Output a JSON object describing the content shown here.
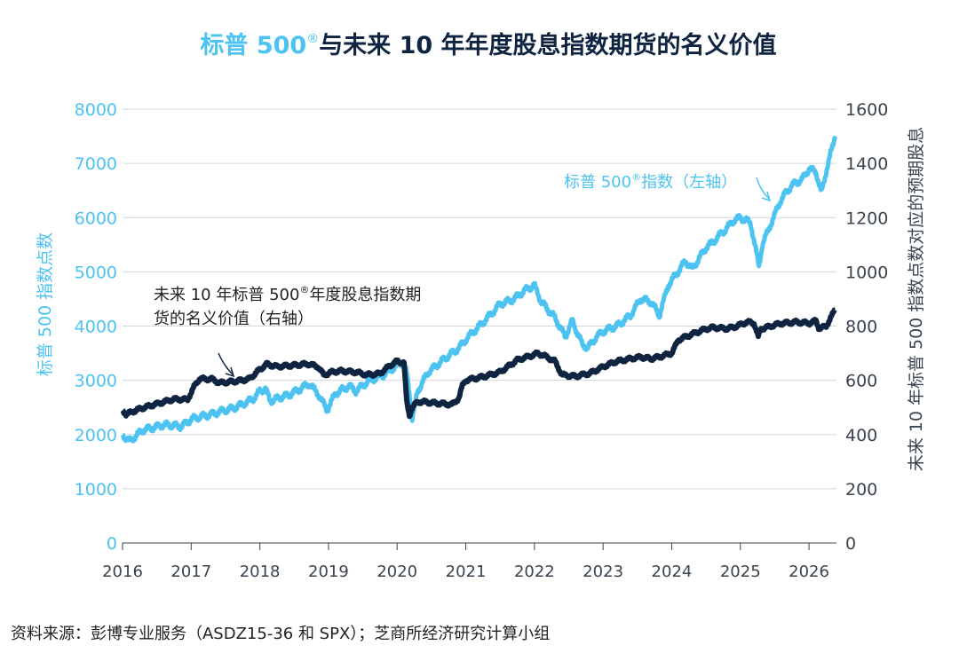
{
  "chart_data": {
    "type": "line",
    "title_part1": "标普 500",
    "title_sup": "®",
    "title_part2": "与未来 10 年年度股息指数期货的名义价值",
    "y_left_label": "标普 500 指数点数",
    "y_right_label": "未来 10 年标普 500 指数点数对应的预期股息",
    "y_left_range": [
      0,
      8000
    ],
    "y_right_range": [
      0,
      1600
    ],
    "y_left_ticks": [
      "0",
      "1000",
      "2000",
      "3000",
      "4000",
      "5000",
      "6000",
      "7000",
      "8000"
    ],
    "y_right_ticks": [
      "0",
      "200",
      "400",
      "600",
      "800",
      "1000",
      "1200",
      "1400",
      "1600"
    ],
    "x_range": [
      2016.0,
      2026.4
    ],
    "x_ticks": [
      "2016",
      "2017",
      "2018",
      "2019",
      "2020",
      "2021",
      "2022",
      "2023",
      "2024",
      "2025",
      "2026"
    ],
    "grid": true,
    "colors": {
      "spx": "#4cc3f0",
      "dividend": "#0f2440",
      "grid": "#d4d7db"
    },
    "series": [
      {
        "name": "标普 500®指数（左轴）",
        "axis": "left",
        "x": [
          2016.0,
          2016.1,
          2016.3,
          2016.6,
          2016.85,
          2017.0,
          2017.3,
          2017.6,
          2017.9,
          2018.0,
          2018.08,
          2018.15,
          2018.4,
          2018.6,
          2018.72,
          2018.85,
          2018.98,
          2019.1,
          2019.3,
          2019.4,
          2019.6,
          2019.8,
          2019.95,
          2020.1,
          2020.15,
          2020.22,
          2020.3,
          2020.45,
          2020.7,
          2020.9,
          2021.0,
          2021.2,
          2021.5,
          2021.7,
          2021.85,
          2022.0,
          2022.1,
          2022.3,
          2022.45,
          2022.55,
          2022.7,
          2022.78,
          2022.9,
          2023.0,
          2023.2,
          2023.4,
          2023.55,
          2023.7,
          2023.82,
          2023.95,
          2024.2,
          2024.3,
          2024.5,
          2024.6,
          2024.8,
          2024.9,
          2025.0,
          2025.15,
          2025.27,
          2025.32,
          2025.45,
          2025.6,
          2025.75,
          2025.9,
          2026.0,
          2026.1,
          2026.18,
          2026.25,
          2026.38
        ],
        "y": [
          2000,
          1880,
          2080,
          2180,
          2150,
          2280,
          2380,
          2480,
          2650,
          2800,
          2850,
          2620,
          2720,
          2850,
          2930,
          2750,
          2450,
          2750,
          2900,
          2800,
          3000,
          3100,
          3230,
          3350,
          3050,
          2300,
          2800,
          3150,
          3400,
          3600,
          3750,
          4000,
          4400,
          4500,
          4650,
          4750,
          4450,
          4150,
          3800,
          4100,
          3650,
          3600,
          3800,
          3900,
          4000,
          4200,
          4500,
          4450,
          4200,
          4750,
          5200,
          5050,
          5450,
          5550,
          5800,
          5950,
          6000,
          5900,
          5100,
          5500,
          5900,
          6350,
          6600,
          6700,
          6900,
          6850,
          6450,
          6850,
          7500
        ]
      },
      {
        "name": "未来 10 年标普 500®年度股息指数期货的名义价值（右轴）",
        "axis": "right",
        "x": [
          2016.0,
          2016.05,
          2016.2,
          2016.45,
          2016.75,
          2016.95,
          2017.05,
          2017.12,
          2017.3,
          2017.42,
          2017.6,
          2017.85,
          2018.0,
          2018.1,
          2018.25,
          2018.45,
          2018.7,
          2018.85,
          2018.93,
          2019.05,
          2019.2,
          2019.4,
          2019.55,
          2019.75,
          2019.9,
          2020.0,
          2020.1,
          2020.14,
          2020.18,
          2020.22,
          2020.3,
          2020.42,
          2020.6,
          2020.8,
          2020.9,
          2020.95,
          2021.0,
          2021.2,
          2021.5,
          2021.75,
          2021.95,
          2022.05,
          2022.15,
          2022.3,
          2022.4,
          2022.6,
          2022.8,
          2023.0,
          2023.2,
          2023.4,
          2023.55,
          2023.7,
          2023.88,
          2024.0,
          2024.1,
          2024.3,
          2024.5,
          2024.6,
          2024.8,
          2024.95,
          2025.1,
          2025.2,
          2025.26,
          2025.3,
          2025.45,
          2025.6,
          2025.8,
          2026.0,
          2026.1,
          2026.15,
          2026.25,
          2026.38
        ],
        "y": [
          490,
          475,
          490,
          510,
          530,
          530,
          580,
          605,
          605,
          590,
          595,
          605,
          640,
          660,
          650,
          655,
          660,
          650,
          620,
          630,
          635,
          630,
          620,
          625,
          655,
          670,
          665,
          520,
          470,
          500,
          520,
          520,
          515,
          510,
          535,
          580,
          600,
          610,
          630,
          675,
          690,
          700,
          690,
          670,
          620,
          615,
          625,
          650,
          670,
          680,
          685,
          680,
          690,
          700,
          750,
          770,
          790,
          795,
          790,
          800,
          815,
          810,
          760,
          790,
          800,
          810,
          815,
          810,
          820,
          790,
          800,
          860
        ]
      }
    ],
    "annotations": {
      "spx_label_a": "标普 500",
      "spx_label_sup": "®",
      "spx_label_b": "指数（左轴）",
      "div_label_line1_a": "未来 10 年标普 500",
      "div_label_line1_sup": "®",
      "div_label_line1_b": "年度股息指数期",
      "div_label_line2": "货的名义价值（右轴）"
    }
  },
  "source": "资料来源：彭博专业服务（ASDZ15-36 和 SPX）；芝商所经济研究计算小组"
}
